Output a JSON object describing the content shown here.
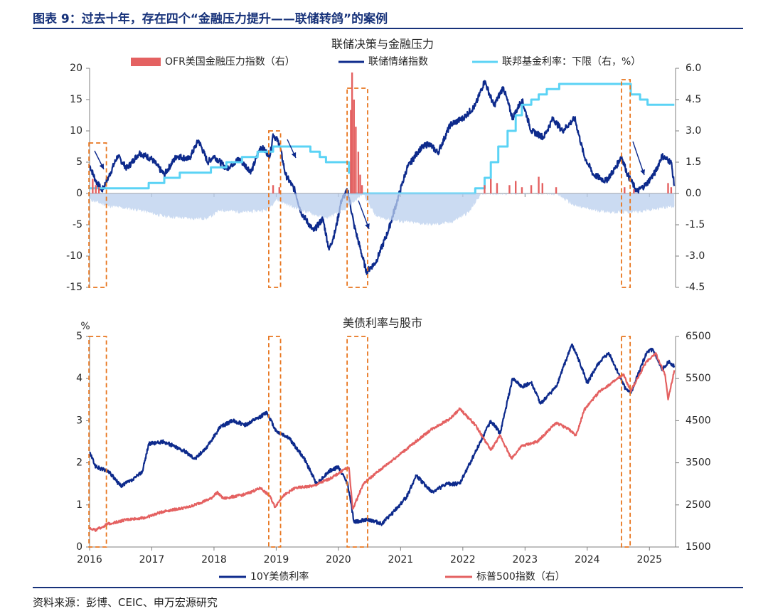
{
  "figure_title": "图表 9：过去十年，存在四个“金融压力提升——联储转鸽”的案例",
  "source": "资料来源：彭博、CEIC、申万宏源研究",
  "colors": {
    "navy": "#0d2a8c",
    "cyan": "#5bd3f5",
    "red": "#e46161",
    "light_blue": "#b9cfee",
    "orange": "#e8761f",
    "axis": "#7f7f7f"
  },
  "chart_data": [
    {
      "type": "line",
      "title": "联储决策与金融压力",
      "x_ticks": [
        "2016",
        "2017",
        "2018",
        "2019",
        "2020",
        "2021",
        "2022",
        "2023",
        "2024",
        "2025"
      ],
      "y_left": {
        "min": -15,
        "max": 20,
        "ticks": [
          "20",
          "15",
          "10",
          "5",
          "0",
          "-5",
          "-10",
          "-15"
        ]
      },
      "y_right": {
        "min": -4.5,
        "max": 6.0,
        "ticks": [
          "6.0",
          "4.5",
          "3.0",
          "1.5",
          "0.0",
          "-1.5",
          "-3.0",
          "-4.5"
        ]
      },
      "legend": [
        "OFR美国金融压力指数（右）",
        "联储情绪指数",
        "联邦基金利率：下限（右，%）"
      ],
      "series": [
        {
          "name": "联储情绪指数",
          "axis": "left",
          "color": "#0d2a8c",
          "points": [
            [
              2016.0,
              4.5
            ],
            [
              2016.1,
              2
            ],
            [
              2016.2,
              0.5
            ],
            [
              2016.3,
              2.5
            ],
            [
              2016.45,
              6
            ],
            [
              2016.6,
              4
            ],
            [
              2016.8,
              6.5
            ],
            [
              2017.0,
              5.5
            ],
            [
              2017.2,
              3
            ],
            [
              2017.4,
              6
            ],
            [
              2017.6,
              5.5
            ],
            [
              2017.75,
              8.5
            ],
            [
              2017.9,
              5
            ],
            [
              2018.0,
              6
            ],
            [
              2018.2,
              4
            ],
            [
              2018.4,
              5.5
            ],
            [
              2018.6,
              3.5
            ],
            [
              2018.75,
              7.5
            ],
            [
              2018.9,
              6
            ],
            [
              2018.95,
              9.5
            ],
            [
              2019.05,
              8
            ],
            [
              2019.15,
              3
            ],
            [
              2019.3,
              0.5
            ],
            [
              2019.4,
              -3
            ],
            [
              2019.6,
              -6
            ],
            [
              2019.75,
              -4
            ],
            [
              2019.85,
              -9
            ],
            [
              2019.95,
              -6
            ],
            [
              2020.05,
              -1
            ],
            [
              2020.15,
              0.5
            ],
            [
              2020.25,
              -5
            ],
            [
              2020.45,
              -12.5
            ],
            [
              2020.6,
              -11
            ],
            [
              2020.8,
              -6
            ],
            [
              2020.95,
              -1
            ],
            [
              2021.1,
              4
            ],
            [
              2021.3,
              7
            ],
            [
              2021.45,
              8
            ],
            [
              2021.6,
              6.5
            ],
            [
              2021.8,
              11
            ],
            [
              2022.0,
              12
            ],
            [
              2022.2,
              14
            ],
            [
              2022.35,
              18
            ],
            [
              2022.5,
              14
            ],
            [
              2022.65,
              17
            ],
            [
              2022.8,
              12
            ],
            [
              2022.95,
              15
            ],
            [
              2023.1,
              10
            ],
            [
              2023.3,
              9
            ],
            [
              2023.45,
              12
            ],
            [
              2023.6,
              10
            ],
            [
              2023.8,
              12
            ],
            [
              2023.95,
              6
            ],
            [
              2024.1,
              3
            ],
            [
              2024.3,
              2
            ],
            [
              2024.45,
              4
            ],
            [
              2024.55,
              6
            ],
            [
              2024.65,
              3
            ],
            [
              2024.8,
              0.3
            ],
            [
              2024.95,
              1.5
            ],
            [
              2025.1,
              3.5
            ],
            [
              2025.2,
              6
            ],
            [
              2025.35,
              5
            ],
            [
              2025.4,
              1.2
            ]
          ]
        },
        {
          "name": "联邦基金利率：下限（右，%）",
          "axis": "right",
          "color": "#5bd3f5",
          "step": true,
          "points": [
            [
              2016.0,
              0.25
            ],
            [
              2016.95,
              0.5
            ],
            [
              2017.2,
              0.75
            ],
            [
              2017.45,
              1.0
            ],
            [
              2017.95,
              1.25
            ],
            [
              2018.2,
              1.5
            ],
            [
              2018.45,
              1.75
            ],
            [
              2018.7,
              2.0
            ],
            [
              2018.95,
              2.25
            ],
            [
              2019.55,
              2.0
            ],
            [
              2019.7,
              1.75
            ],
            [
              2019.8,
              1.5
            ],
            [
              2020.17,
              1.0
            ],
            [
              2020.2,
              0.0
            ],
            [
              2022.2,
              0.25
            ],
            [
              2022.35,
              0.75
            ],
            [
              2022.45,
              1.5
            ],
            [
              2022.57,
              2.25
            ],
            [
              2022.72,
              3.0
            ],
            [
              2022.85,
              3.75
            ],
            [
              2022.95,
              4.25
            ],
            [
              2023.1,
              4.5
            ],
            [
              2023.22,
              4.75
            ],
            [
              2023.35,
              5.0
            ],
            [
              2023.55,
              5.25
            ],
            [
              2024.7,
              4.75
            ],
            [
              2024.85,
              4.5
            ],
            [
              2024.97,
              4.25
            ],
            [
              2025.4,
              4.25
            ]
          ]
        },
        {
          "name": "OFR美国金融压力指数（右）",
          "axis": "right",
          "color": "#e46161",
          "spikes": [
            [
              2016.05,
              0.7
            ],
            [
              2016.1,
              0.4
            ],
            [
              2016.15,
              0.3
            ],
            [
              2018.95,
              0.4
            ],
            [
              2019.05,
              0.3
            ],
            [
              2020.2,
              4.0
            ],
            [
              2020.22,
              5.8
            ],
            [
              2020.25,
              4.5
            ],
            [
              2020.28,
              3.2
            ],
            [
              2020.32,
              2.0
            ],
            [
              2020.35,
              0.9
            ],
            [
              2020.38,
              0.4
            ],
            [
              2022.35,
              0.4
            ],
            [
              2022.45,
              0.7
            ],
            [
              2022.55,
              0.5
            ],
            [
              2022.75,
              0.4
            ],
            [
              2022.85,
              0.6
            ],
            [
              2022.95,
              0.3
            ],
            [
              2023.1,
              0.4
            ],
            [
              2023.22,
              0.8
            ],
            [
              2023.28,
              0.5
            ],
            [
              2023.5,
              0.3
            ],
            [
              2024.6,
              0.3
            ],
            [
              2024.75,
              0.2
            ],
            [
              2025.3,
              0.5
            ],
            [
              2025.35,
              0.3
            ]
          ],
          "negative_envelope": [
            [
              2016.0,
              -0.3
            ],
            [
              2016.3,
              -0.6
            ],
            [
              2016.8,
              -0.8
            ],
            [
              2017.2,
              -1.1
            ],
            [
              2017.6,
              -1.2
            ],
            [
              2017.9,
              -1.2
            ],
            [
              2018.1,
              -0.8
            ],
            [
              2018.5,
              -0.9
            ],
            [
              2018.85,
              -0.8
            ],
            [
              2019.0,
              -0.3
            ],
            [
              2019.3,
              -0.7
            ],
            [
              2019.8,
              -1.2
            ],
            [
              2020.1,
              -0.8
            ],
            [
              2020.4,
              0
            ],
            [
              2020.6,
              -1.1
            ],
            [
              2020.9,
              -1.3
            ],
            [
              2021.2,
              -1.4
            ],
            [
              2021.5,
              -1.5
            ],
            [
              2021.8,
              -1.4
            ],
            [
              2022.1,
              -0.9
            ],
            [
              2022.3,
              0
            ],
            [
              2023.5,
              0
            ],
            [
              2023.8,
              -0.6
            ],
            [
              2024.1,
              -0.8
            ],
            [
              2024.4,
              -0.9
            ],
            [
              2024.7,
              -0.9
            ],
            [
              2025.0,
              -0.8
            ],
            [
              2025.4,
              -0.6
            ]
          ]
        }
      ]
    },
    {
      "type": "line",
      "title": "美债利率与股市",
      "y_unit": "%",
      "x_ticks": [
        "2016",
        "2017",
        "2018",
        "2019",
        "2020",
        "2021",
        "2022",
        "2023",
        "2024",
        "2025"
      ],
      "y_left": {
        "min": 0,
        "max": 5,
        "ticks": [
          "5",
          "4",
          "3",
          "2",
          "1",
          "0"
        ]
      },
      "y_right": {
        "min": 1500,
        "max": 6500,
        "ticks": [
          "6500",
          "5500",
          "4500",
          "3500",
          "2500",
          "1500"
        ]
      },
      "legend": [
        "10Y美债利率",
        "标普500指数（右）"
      ],
      "series": [
        {
          "name": "10Y美债利率",
          "axis": "left",
          "color": "#0d2a8c",
          "points": [
            [
              2016.0,
              2.25
            ],
            [
              2016.1,
              1.9
            ],
            [
              2016.3,
              1.8
            ],
            [
              2016.5,
              1.45
            ],
            [
              2016.7,
              1.6
            ],
            [
              2016.85,
              1.8
            ],
            [
              2016.95,
              2.45
            ],
            [
              2017.2,
              2.5
            ],
            [
              2017.5,
              2.3
            ],
            [
              2017.7,
              2.1
            ],
            [
              2017.9,
              2.4
            ],
            [
              2018.1,
              2.85
            ],
            [
              2018.3,
              3.0
            ],
            [
              2018.5,
              2.9
            ],
            [
              2018.7,
              3.05
            ],
            [
              2018.85,
              3.2
            ],
            [
              2019.0,
              2.75
            ],
            [
              2019.2,
              2.6
            ],
            [
              2019.45,
              2.1
            ],
            [
              2019.65,
              1.5
            ],
            [
              2019.85,
              1.8
            ],
            [
              2020.0,
              1.9
            ],
            [
              2020.15,
              1.5
            ],
            [
              2020.25,
              0.6
            ],
            [
              2020.5,
              0.65
            ],
            [
              2020.7,
              0.55
            ],
            [
              2020.9,
              0.85
            ],
            [
              2021.1,
              1.2
            ],
            [
              2021.25,
              1.7
            ],
            [
              2021.5,
              1.3
            ],
            [
              2021.75,
              1.5
            ],
            [
              2021.95,
              1.5
            ],
            [
              2022.15,
              2.1
            ],
            [
              2022.45,
              3.0
            ],
            [
              2022.6,
              2.7
            ],
            [
              2022.8,
              4.0
            ],
            [
              2022.95,
              3.8
            ],
            [
              2023.1,
              3.9
            ],
            [
              2023.25,
              3.4
            ],
            [
              2023.5,
              3.8
            ],
            [
              2023.75,
              4.8
            ],
            [
              2023.85,
              4.5
            ],
            [
              2024.0,
              3.9
            ],
            [
              2024.2,
              4.4
            ],
            [
              2024.35,
              4.6
            ],
            [
              2024.6,
              3.8
            ],
            [
              2024.7,
              3.65
            ],
            [
              2024.95,
              4.6
            ],
            [
              2025.05,
              4.7
            ],
            [
              2025.2,
              4.2
            ],
            [
              2025.3,
              4.4
            ],
            [
              2025.4,
              4.3
            ]
          ]
        },
        {
          "name": "标普500指数（右）",
          "axis": "right",
          "color": "#e46161",
          "points": [
            [
              2016.0,
              1950
            ],
            [
              2016.1,
              1900
            ],
            [
              2016.3,
              2050
            ],
            [
              2016.6,
              2150
            ],
            [
              2016.9,
              2200
            ],
            [
              2017.2,
              2350
            ],
            [
              2017.6,
              2450
            ],
            [
              2017.95,
              2650
            ],
            [
              2018.05,
              2800
            ],
            [
              2018.15,
              2650
            ],
            [
              2018.5,
              2750
            ],
            [
              2018.75,
              2900
            ],
            [
              2018.9,
              2700
            ],
            [
              2018.98,
              2450
            ],
            [
              2019.1,
              2700
            ],
            [
              2019.3,
              2900
            ],
            [
              2019.6,
              2950
            ],
            [
              2019.9,
              3150
            ],
            [
              2020.1,
              3350
            ],
            [
              2020.17,
              3380
            ],
            [
              2020.23,
              2400
            ],
            [
              2020.4,
              3000
            ],
            [
              2020.6,
              3250
            ],
            [
              2020.9,
              3600
            ],
            [
              2021.2,
              3950
            ],
            [
              2021.5,
              4300
            ],
            [
              2021.8,
              4550
            ],
            [
              2021.95,
              4780
            ],
            [
              2022.2,
              4400
            ],
            [
              2022.45,
              3800
            ],
            [
              2022.6,
              4150
            ],
            [
              2022.78,
              3600
            ],
            [
              2022.95,
              3900
            ],
            [
              2023.2,
              4000
            ],
            [
              2023.5,
              4450
            ],
            [
              2023.7,
              4300
            ],
            [
              2023.82,
              4150
            ],
            [
              2023.95,
              4750
            ],
            [
              2024.2,
              5200
            ],
            [
              2024.45,
              5450
            ],
            [
              2024.58,
              5600
            ],
            [
              2024.7,
              5200
            ],
            [
              2024.95,
              5900
            ],
            [
              2025.1,
              6100
            ],
            [
              2025.25,
              5600
            ],
            [
              2025.3,
              5000
            ],
            [
              2025.4,
              5700
            ]
          ]
        }
      ]
    }
  ],
  "highlights": [
    {
      "x0": 2015.99,
      "x1": 2016.27
    },
    {
      "x0": 2018.88,
      "x1": 2019.07
    },
    {
      "x0": 2020.14,
      "x1": 2020.47
    },
    {
      "x0": 2024.55,
      "x1": 2024.69
    }
  ]
}
